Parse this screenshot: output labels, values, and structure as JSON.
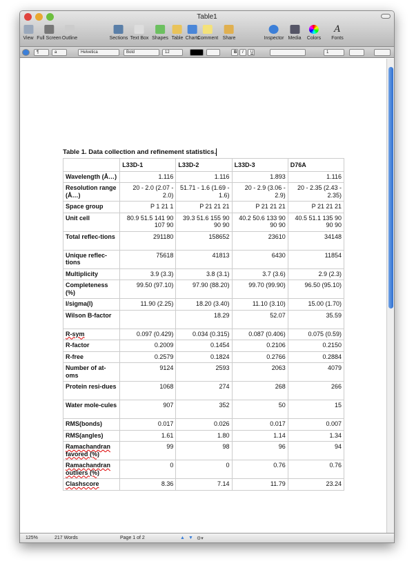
{
  "window": {
    "title": "Table1"
  },
  "toolbar": [
    {
      "label": "View",
      "icon": "view-icon",
      "color": "#9aa8bb"
    },
    {
      "label": "Full Screen",
      "icon": "fullscreen-icon",
      "color": "#777"
    },
    {
      "label": "Outline",
      "icon": "outline-icon",
      "color": "#ccc"
    },
    {
      "label": "Sections",
      "icon": "sections-icon",
      "color": "#5a7fa8"
    },
    {
      "label": "Text Box",
      "icon": "textbox-icon",
      "color": "#ddd"
    },
    {
      "label": "Shapes",
      "icon": "shapes-icon",
      "color": "#6cc060"
    },
    {
      "label": "Table",
      "icon": "table-icon",
      "color": "#e9c35a"
    },
    {
      "label": "Charts",
      "icon": "charts-icon",
      "color": "#4a86d8"
    },
    {
      "label": "Comment",
      "icon": "comment-icon",
      "color": "#f4e27a"
    },
    {
      "label": "Share",
      "icon": "share-icon",
      "color": "#e0b050"
    },
    {
      "label": "Inspector",
      "icon": "inspector-icon",
      "color": "#3c7fd8"
    },
    {
      "label": "Media",
      "icon": "media-icon",
      "color": "#556"
    },
    {
      "label": "Colors",
      "icon": "colors-icon",
      "color": "#e05ab0"
    },
    {
      "label": "Fonts",
      "icon": "fonts-icon",
      "color": "#fff"
    }
  ],
  "format_bar": {
    "paragraph": "¶",
    "char": "a",
    "font": "Helvetica",
    "style": "Bold",
    "size": "12",
    "bold": "B",
    "italic": "I",
    "underline": "U",
    "line_spacing": "1"
  },
  "document": {
    "caption": "Table 1.  Data collection and refinement statistics.",
    "headers": [
      "",
      "L33D-1",
      "L33D-2",
      "L33D-3",
      "D76A"
    ],
    "rows": [
      {
        "label": "Wavelength (Å…)",
        "values": [
          "1.116",
          "1.116",
          "1.893",
          "1.116"
        ]
      },
      {
        "label": "Resolution range (Å…)",
        "values": [
          "20  - 2.0 (2.07 - 2.0)",
          "51.71  - 1.6 (1.69 - 1.6)",
          "20  - 2.9 (3.06 - 2.9)",
          "20  - 2.35 (2.43 - 2.35)"
        ]
      },
      {
        "label": "Space group",
        "values": [
          "P 1 21 1",
          "P 21 21 21",
          "P 21 21 21",
          "P 21 21 21"
        ]
      },
      {
        "label": "Unit cell",
        "values": [
          "80.9 51.5 141 90 107 90",
          "39.3 51.6 155 90 90 90",
          "40.2 50.6 133 90 90 90",
          "40.5 51.1 135 90 90 90"
        ]
      },
      {
        "label": "Total reflec-tions",
        "values": [
          "291180",
          "158652",
          "23610",
          "34148"
        ]
      },
      {
        "label": "Unique reflec-tions",
        "values": [
          "75618",
          "41813",
          "6430",
          "11854"
        ]
      },
      {
        "label": "Multiplicity",
        "values": [
          "3.9 (3.3)",
          "3.8 (3.1)",
          "3.7 (3.6)",
          "2.9 (2.3)"
        ]
      },
      {
        "label": "Completeness (%)",
        "values": [
          "99.50 (97.10)",
          "97.90 (88.20)",
          "99.70 (99.90)",
          "96.50 (95.10)"
        ]
      },
      {
        "label": "I/sigma(I)",
        "values": [
          "11.90 (2.25)",
          "18.20 (3.40)",
          "11.10 (3.10)",
          "15.00 (1.70)"
        ]
      },
      {
        "label": "Wilson B-factor",
        "values": [
          "",
          "18.29",
          "52.07",
          "35.59"
        ]
      },
      {
        "label": "R-sym",
        "values": [
          "0.097 (0.429)",
          "0.034 (0.315)",
          "0.087 (0.406)",
          "0.075 (0.59)"
        ]
      },
      {
        "label": "R-factor",
        "values": [
          "0.2009",
          "0.1454",
          "0.2106",
          "0.2150"
        ]
      },
      {
        "label": "R-free",
        "values": [
          "0.2579",
          "0.1824",
          "0.2766",
          "0.2884"
        ]
      },
      {
        "label": "Number of at-oms",
        "values": [
          "9124",
          "2593",
          "2063",
          "4079"
        ]
      },
      {
        "label": "Protein resi-dues",
        "values": [
          "1068",
          "274",
          "268",
          "266"
        ]
      },
      {
        "label": "Water mole-cules",
        "values": [
          "907",
          "352",
          "50",
          "15"
        ]
      },
      {
        "label": "RMS(bonds)",
        "values": [
          "0.017",
          "0.026",
          "0.017",
          "0.007"
        ]
      },
      {
        "label": "RMS(angles)",
        "values": [
          "1.61",
          "1.80",
          "1.14",
          "1.34"
        ]
      },
      {
        "label": "Ramachandran favored (%)",
        "values": [
          "99",
          "98",
          "96",
          "94"
        ]
      },
      {
        "label": "Ramachandran outliers (%)",
        "values": [
          "0",
          "0",
          "0.76",
          "0.76"
        ]
      },
      {
        "label": "Clashscore",
        "values": [
          "8.36",
          "7.14",
          "11.79",
          "23.24"
        ]
      }
    ]
  },
  "status": {
    "zoom": "125%",
    "words": "217 Words",
    "page": "Page 1 of 2"
  }
}
